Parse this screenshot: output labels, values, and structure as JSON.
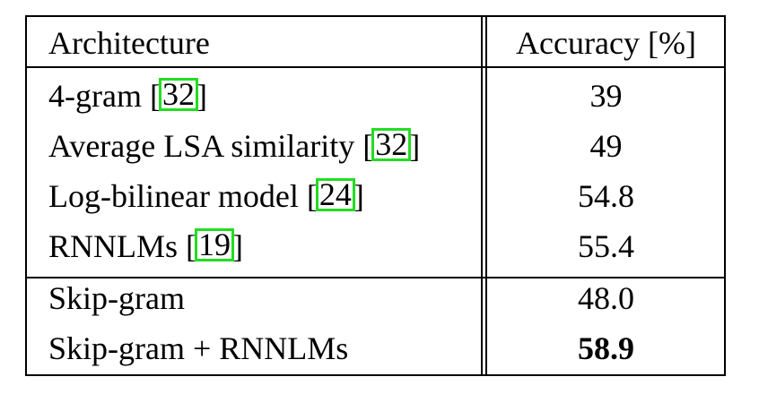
{
  "table": {
    "headers": {
      "architecture": "Architecture",
      "accuracy": "Accuracy [%]"
    },
    "group1": [
      {
        "name": "4-gram",
        "cite": "32",
        "accuracy": "39"
      },
      {
        "name": "Average LSA similarity",
        "cite": "32",
        "accuracy": "49"
      },
      {
        "name": "Log-bilinear model",
        "cite": "24",
        "accuracy": "54.8"
      },
      {
        "name": "RNNLMs",
        "cite": "19",
        "accuracy": "55.4"
      }
    ],
    "group2": [
      {
        "name": "Skip-gram",
        "accuracy": "48.0"
      },
      {
        "name": "Skip-gram + RNNLMs",
        "accuracy": "58.9",
        "best": true
      }
    ]
  },
  "colors": {
    "citation_box": "#22dd22",
    "text": "#000000"
  }
}
